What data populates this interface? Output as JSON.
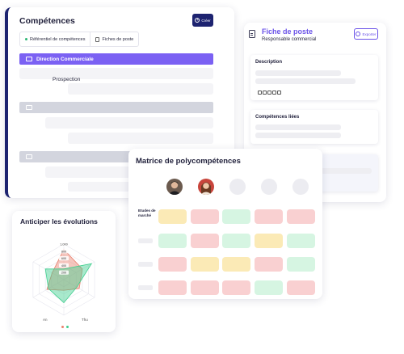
{
  "competences": {
    "title": "Compétences",
    "create_label": "Créer",
    "tabs": [
      {
        "label": "Référentiel de compétences",
        "active": true
      },
      {
        "label": "Fiches de poste",
        "active": false
      }
    ],
    "folders": [
      {
        "label": "Direction Commerciale",
        "active": true
      },
      {
        "label": "",
        "active": false
      },
      {
        "label": "",
        "active": false
      }
    ],
    "sub_items": [
      "Prospection"
    ]
  },
  "fiche": {
    "title": "Fiche de poste",
    "subtitle": "Responsable commercial",
    "export_label": "Exporter",
    "description_label": "Description",
    "linked_label": "Compétences liées"
  },
  "matrice": {
    "title": "Matrice de polycompétences",
    "row_label": "Etudes de marché",
    "avatars": [
      "man-avatar",
      "woman-avatar",
      "empty",
      "empty",
      "empty"
    ],
    "grid": [
      [
        "y",
        "r",
        "g",
        "r",
        "r"
      ],
      [
        "g",
        "r",
        "g",
        "y",
        "g"
      ],
      [
        "r",
        "y",
        "y",
        "r",
        "g"
      ],
      [
        "r",
        "r",
        "r",
        "g",
        "r"
      ]
    ],
    "colors": {
      "y": "#fbeab6",
      "r": "#f9d0d1",
      "g": "#d6f5e2"
    }
  },
  "anticiper": {
    "title": "Anticiper les évolutions",
    "ring_labels": [
      "1,000",
      "800",
      "600",
      "400",
      "200"
    ],
    "axis_labels": [
      "An",
      "Thu"
    ],
    "series_colors": [
      "#e9806e",
      "#3fcf8e"
    ],
    "chart_data": {
      "type": "radar",
      "title": "Anticiper les évolutions",
      "ticks": [
        "1,000",
        "800",
        "600",
        "400",
        "200"
      ],
      "labels_visible": [
        "An",
        "Thu"
      ],
      "series": [
        {
          "values": [
            850,
            600,
            500,
            300,
            550,
            380
          ]
        },
        {
          "values": [
            300,
            900,
            420,
            650,
            500,
            600
          ]
        }
      ]
    }
  }
}
